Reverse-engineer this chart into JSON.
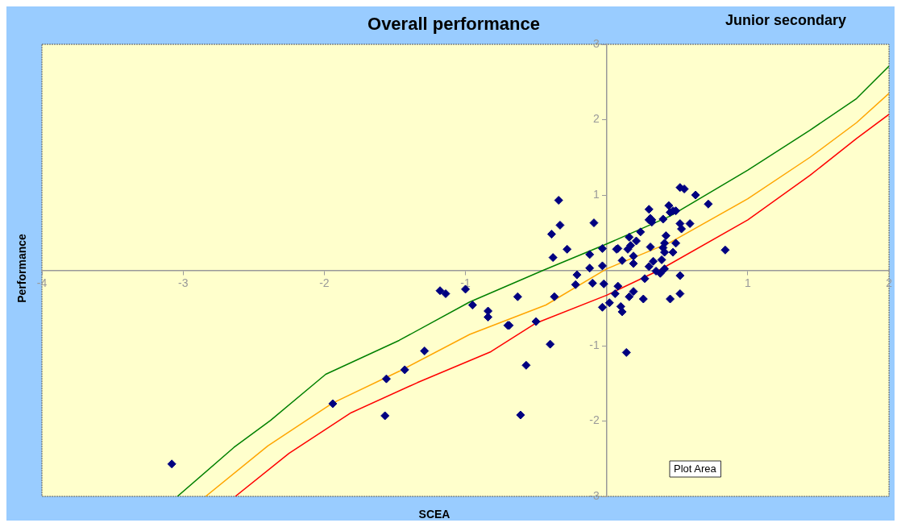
{
  "chart_data": {
    "type": "scatter",
    "title": "Overall performance",
    "subtitle": "Junior secondary",
    "xlabel": "SCEA",
    "ylabel": "Performance",
    "annotations": [
      "Plot Area"
    ],
    "xlim": [
      -4,
      2
    ],
    "ylim": [
      -3,
      3
    ],
    "xticks": [
      -4,
      -3,
      -2,
      -1,
      {
        "value": 0,
        "label": null
      },
      1,
      2
    ],
    "yticks": [
      -3,
      -2,
      -1,
      {
        "value": 0,
        "label": null
      },
      1,
      2,
      3
    ],
    "series": [
      {
        "type": "scatter",
        "color": "#000080",
        "marker": "diamond",
        "x": [
          -0.34,
          -0.33,
          -0.39,
          -0.38,
          -0.28,
          -0.09,
          -0.03,
          -0.12,
          -0.03,
          -0.12,
          -0.21,
          -0.22,
          -0.1,
          -0.02,
          -0.37,
          -0.63,
          -0.5,
          -0.4,
          -0.57,
          -0.7,
          -0.69,
          -0.84,
          -0.84,
          -0.95,
          -1.0,
          -3.08,
          -1.94,
          -1.56,
          -1.57,
          -1.43,
          -1.29,
          -1.18,
          -1.14,
          -0.61,
          0.3,
          0.32,
          0.3,
          0.32,
          0.31,
          0.4,
          0.44,
          0.45,
          0.47,
          0.49,
          0.52,
          0.55,
          0.63,
          0.72,
          0.24,
          0.16,
          0.21,
          0.17,
          0.15,
          0.08,
          0.07,
          0.19,
          0.11,
          0.19,
          0.31,
          0.42,
          0.41,
          0.4,
          0.41,
          0.47,
          0.49,
          0.52,
          0.53,
          0.59,
          0.84,
          0.33,
          0.39,
          0.3,
          0.35,
          0.38,
          0.41,
          0.52,
          0.27,
          0.08,
          0.06,
          0.19,
          0.16,
          0.26,
          0.45,
          0.52,
          0.02,
          -0.03,
          0.1,
          0.11,
          0.14
        ],
        "values": [
          0.93,
          0.6,
          0.48,
          0.17,
          0.28,
          0.63,
          0.29,
          0.21,
          0.06,
          0.03,
          -0.06,
          -0.19,
          -0.17,
          -0.18,
          -0.35,
          -0.35,
          -0.68,
          -0.98,
          -1.26,
          -0.73,
          -0.73,
          -0.54,
          -0.62,
          -0.46,
          -0.25,
          -2.57,
          -1.77,
          -1.44,
          -1.93,
          -1.32,
          -1.07,
          -0.27,
          -0.31,
          -1.92,
          0.81,
          0.67,
          0.67,
          0.64,
          0.69,
          0.68,
          0.86,
          0.77,
          0.79,
          0.79,
          1.1,
          1.08,
          1.0,
          0.88,
          0.51,
          0.44,
          0.39,
          0.33,
          0.28,
          0.29,
          0.28,
          0.19,
          0.13,
          0.09,
          0.31,
          0.46,
          0.36,
          0.3,
          0.24,
          0.24,
          0.36,
          0.62,
          0.55,
          0.62,
          0.27,
          0.12,
          0.14,
          0.05,
          -0.01,
          -0.04,
          0.02,
          -0.07,
          -0.11,
          -0.21,
          -0.31,
          -0.28,
          -0.35,
          -0.38,
          -0.38,
          -0.31,
          -0.43,
          -0.49,
          -0.48,
          -0.55,
          -1.09
        ]
      },
      {
        "type": "line",
        "color": "#008000",
        "marker": "none",
        "x": [
          -3.04,
          -2.64,
          -2.38,
          -1.99,
          -1.47,
          -0.97,
          -0.45,
          0,
          0.45,
          1.0,
          1.44,
          1.77,
          2.0
        ],
        "values": [
          -3,
          -2.35,
          -1.99,
          -1.38,
          -0.93,
          -0.42,
          0,
          0.35,
          0.72,
          1.33,
          1.86,
          2.28,
          2.71
        ]
      },
      {
        "type": "line",
        "color": "#ffa500",
        "marker": "none",
        "x": [
          -2.84,
          -2.4,
          -1.94,
          -1.47,
          -0.97,
          -0.43,
          0,
          0.45,
          1.0,
          1.44,
          1.77,
          2.0
        ],
        "values": [
          -3,
          -2.33,
          -1.76,
          -1.34,
          -0.85,
          -0.46,
          0.02,
          0.37,
          0.95,
          1.5,
          1.96,
          2.35
        ]
      },
      {
        "type": "line",
        "color": "#ff0000",
        "marker": "none",
        "x": [
          -2.63,
          -2.25,
          -1.81,
          -1.34,
          -0.82,
          -0.5,
          0,
          0.37,
          1.0,
          1.44,
          1.77,
          2.0
        ],
        "values": [
          -3,
          -2.43,
          -1.89,
          -1.49,
          -1.08,
          -0.7,
          -0.33,
          0,
          0.67,
          1.26,
          1.75,
          2.07
        ]
      }
    ]
  }
}
